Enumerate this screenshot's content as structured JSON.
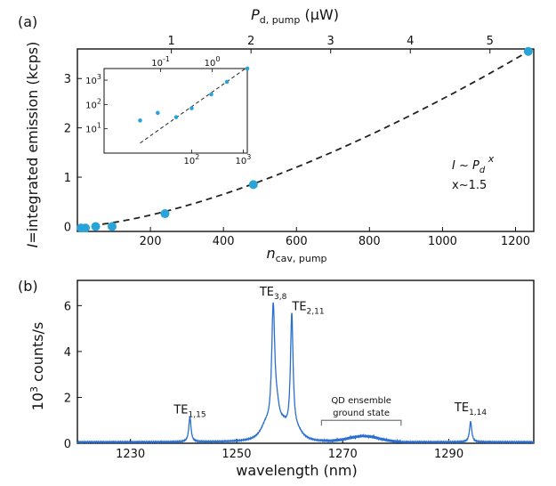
{
  "figure": {
    "panel_a_label": "(a)",
    "panel_b_label": "(b)"
  },
  "chart_data": [
    {
      "id": "a_main",
      "type": "scatter",
      "top_axis_label": {
        "main": "P",
        "sub": "d, pump",
        "unit": "(μW)"
      },
      "top_ticks": [
        1,
        2,
        3,
        4,
        5
      ],
      "top_xlim": [
        -0.18,
        5.55
      ],
      "xlabel": {
        "main": "n",
        "sub": "cav, pump"
      },
      "ylabel": {
        "lead": "I",
        "rest": "=integrated emission (kcps)"
      },
      "xlim": [
        0,
        1250
      ],
      "ylim": [
        -0.1,
        3.6
      ],
      "x_ticks": [
        200,
        400,
        600,
        800,
        1000,
        1200
      ],
      "y_ticks": [
        0,
        1,
        2,
        3
      ],
      "points": [
        {
          "x": 10,
          "y": -0.03
        },
        {
          "x": 22,
          "y": -0.03
        },
        {
          "x": 50,
          "y": 0.0
        },
        {
          "x": 95,
          "y": 0.0
        },
        {
          "x": 240,
          "y": 0.26
        },
        {
          "x": 482,
          "y": 0.85
        },
        {
          "x": 1235,
          "y": 3.55
        }
      ],
      "fit": {
        "exponent": 1.5,
        "x_end": 1235,
        "y_end": 3.55,
        "x_start": 10
      },
      "annotation": {
        "line1_lead": "I ~ P",
        "line1_sub": "d",
        "line1_sup": "x",
        "line2": "x~1.5"
      },
      "colors": {
        "points": "#2aa3d9",
        "fit": "#222222"
      }
    },
    {
      "id": "a_inset",
      "type": "scatter",
      "log_x": true,
      "log_y": true,
      "xlim": [
        2,
        1200
      ],
      "ylim": [
        1,
        3000
      ],
      "x_ticks": [
        {
          "value": 100,
          "base": "10",
          "exp": "2"
        },
        {
          "value": 1000,
          "base": "10",
          "exp": "3"
        }
      ],
      "y_ticks": [
        {
          "value": 10,
          "base": "10",
          "exp": "1"
        },
        {
          "value": 100,
          "base": "10",
          "exp": "2"
        },
        {
          "value": 1000,
          "base": "10",
          "exp": "3"
        }
      ],
      "top_ticks": [
        {
          "value": 25,
          "base": "10",
          "exp": "-1"
        },
        {
          "value": 250,
          "base": "10",
          "exp": "0"
        }
      ],
      "points": [
        {
          "x": 10,
          "y": 22
        },
        {
          "x": 22,
          "y": 45
        },
        {
          "x": 50,
          "y": 30
        },
        {
          "x": 100,
          "y": 70
        },
        {
          "x": 240,
          "y": 260
        },
        {
          "x": 482,
          "y": 850
        },
        {
          "x": 1235,
          "y": 3550
        }
      ],
      "colors": {
        "points": "#2aa3d9",
        "fit": "#222222"
      }
    },
    {
      "id": "b_spectrum",
      "type": "line",
      "xlabel": "wavelength (nm)",
      "ylabel": {
        "lead": "10",
        "sup": "3",
        "rest": " counts/s"
      },
      "xlim": [
        1220,
        1306
      ],
      "ylim": [
        0,
        7.1
      ],
      "x_ticks": [
        1230,
        1250,
        1270,
        1290
      ],
      "y_ticks": [
        0,
        2,
        4,
        6
      ],
      "baseline": 0.05,
      "peaks": [
        {
          "center": 1241.2,
          "height": 1.1,
          "width": 0.25
        },
        {
          "center": 1256.9,
          "height": 5.3,
          "width": 0.35
        },
        {
          "center": 1255.5,
          "height": 0.6,
          "width": 1.2
        },
        {
          "center": 1257.6,
          "height": 0.9,
          "width": 0.6
        },
        {
          "center": 1258.8,
          "height": 0.5,
          "width": 1.0
        },
        {
          "center": 1260.4,
          "height": 5.2,
          "width": 0.3
        },
        {
          "center": 1261.5,
          "height": 0.35,
          "width": 1.2
        },
        {
          "center": 1294.1,
          "height": 0.9,
          "width": 0.25
        }
      ],
      "broad_band": {
        "from": 1266,
        "to": 1281,
        "center": 1274,
        "height": 0.25,
        "width": 4
      },
      "peak_labels": [
        {
          "base": "TE",
          "sub": "1,15",
          "x": 1241.2,
          "y": 1.3
        },
        {
          "base": "TE",
          "sub": "3,8",
          "x": 1256.9,
          "y": 6.45
        },
        {
          "base": "TE",
          "sub": "2,11",
          "x": 1263.5,
          "y": 5.8
        },
        {
          "base": "TE",
          "sub": "1,14",
          "x": 1294.1,
          "y": 1.4
        }
      ],
      "band_label": {
        "line1": "QD ensemble",
        "line2": "ground state"
      },
      "colors": {
        "line": "#2a6fd0"
      }
    }
  ]
}
